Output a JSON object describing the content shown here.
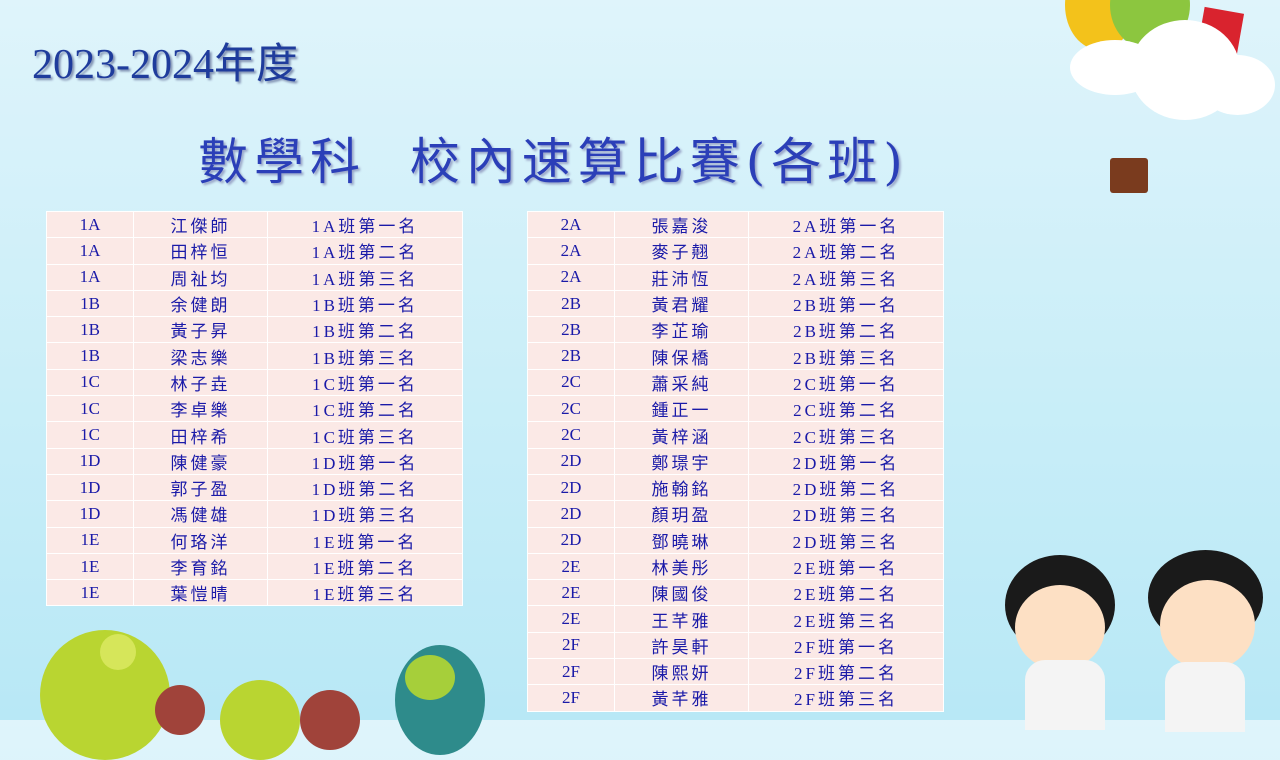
{
  "header": {
    "year": "2023-2024年度",
    "title": "數學科  校內速算比賽(各班)"
  },
  "tables": [
    {
      "rows": [
        [
          "1A",
          "江傑師",
          "1A班第一名"
        ],
        [
          "1A",
          "田梓恒",
          "1A班第二名"
        ],
        [
          "1A",
          "周祉均",
          "1A班第三名"
        ],
        [
          "1B",
          "余健朗",
          "1B班第一名"
        ],
        [
          "1B",
          "黃子昇",
          "1B班第二名"
        ],
        [
          "1B",
          "梁志樂",
          "1B班第三名"
        ],
        [
          "1C",
          "林子垚",
          "1C班第一名"
        ],
        [
          "1C",
          "李卓樂",
          "1C班第二名"
        ],
        [
          "1C",
          "田梓希",
          "1C班第三名"
        ],
        [
          "1D",
          "陳健豪",
          "1D班第一名"
        ],
        [
          "1D",
          "郭子盈",
          "1D班第二名"
        ],
        [
          "1D",
          "馮健雄",
          "1D班第三名"
        ],
        [
          "1E",
          "何珞洋",
          "1E班第一名"
        ],
        [
          "1E",
          "李育銘",
          "1E班第二名"
        ],
        [
          "1E",
          "葉愷晴",
          "1E班第三名"
        ]
      ]
    },
    {
      "rows": [
        [
          "2A",
          "張嘉浚",
          "2A班第一名"
        ],
        [
          "2A",
          "麥子翹",
          "2A班第二名"
        ],
        [
          "2A",
          "莊沛恆",
          "2A班第三名"
        ],
        [
          "2B",
          "黃君耀",
          "2B班第一名"
        ],
        [
          "2B",
          "李芷瑜",
          "2B班第二名"
        ],
        [
          "2B",
          "陳保橋",
          "2B班第三名"
        ],
        [
          "2C",
          "蕭采純",
          "2C班第一名"
        ],
        [
          "2C",
          "鍾正一",
          "2C班第二名"
        ],
        [
          "2C",
          "黃梓涵",
          "2C班第三名"
        ],
        [
          "2D",
          "鄭璟宇",
          "2D班第一名"
        ],
        [
          "2D",
          "施翰銘",
          "2D班第二名"
        ],
        [
          "2D",
          "顏玥盈",
          "2D班第三名"
        ],
        [
          "2D",
          "鄧曉琳",
          "2D班第三名"
        ],
        [
          "2E",
          "林美彤",
          "2E班第一名"
        ],
        [
          "2E",
          "陳國俊",
          "2E班第二名"
        ],
        [
          "2E",
          "王芊雅",
          "2E班第三名"
        ],
        [
          "2F",
          "許昊軒",
          "2F班第一名"
        ],
        [
          "2F",
          "陳熙妍",
          "2F班第二名"
        ],
        [
          "2F",
          "黃芊雅",
          "2F班第三名"
        ]
      ]
    }
  ],
  "colors": {
    "text": "#1a1aa8",
    "cell": "#fbe9e6",
    "title": "#2b3fb8"
  }
}
